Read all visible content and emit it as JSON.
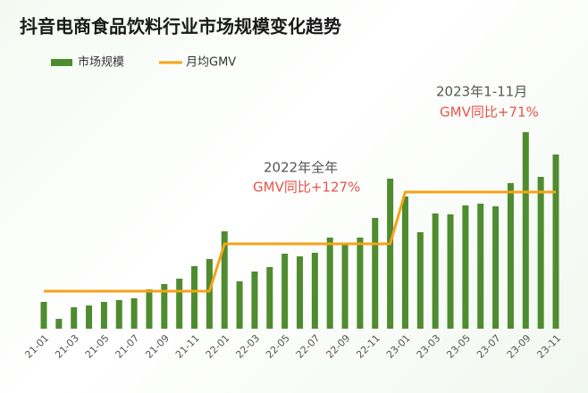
{
  "chart_data": {
    "type": "bar",
    "title": "抖音电商食品饮料行业市场规模变化趋势",
    "categories": [
      "21-01",
      null,
      "21-03",
      null,
      "21-05",
      null,
      "21-07",
      null,
      "21-09",
      null,
      "21-11",
      null,
      "22-01",
      null,
      "22-03",
      null,
      "22-05",
      null,
      "22-07",
      null,
      "22-09",
      null,
      "22-11",
      null,
      "23-01",
      null,
      "23-03",
      null,
      "23-05",
      null,
      "23-07",
      null,
      "23-09",
      null,
      "23-11"
    ],
    "series": [
      {
        "name": "市场规模",
        "type": "bar",
        "color": "#4f8b2f",
        "values": [
          30,
          11,
          24,
          26,
          30,
          32,
          34,
          44,
          50,
          56,
          70,
          78,
          109,
          53,
          64,
          69,
          84,
          81,
          85,
          102,
          96,
          102,
          124,
          168,
          148,
          108,
          129,
          128,
          138,
          140,
          137,
          163,
          220,
          170,
          195
        ]
      },
      {
        "name": "月均GMV",
        "type": "line",
        "color": "#f5a31a",
        "values": [
          42,
          42,
          42,
          42,
          42,
          42,
          42,
          42,
          42,
          42,
          42,
          42,
          95,
          95,
          95,
          95,
          95,
          95,
          95,
          95,
          95,
          95,
          95,
          95,
          153,
          153,
          153,
          153,
          153,
          153,
          153,
          153,
          153,
          153,
          153
        ]
      }
    ],
    "ylim": [
      0,
      230
    ],
    "annotations": [
      {
        "lines": [
          "2022年全年",
          "GMV同比+127%"
        ]
      },
      {
        "lines": [
          "2023年1-11月",
          "GMV同比+71%"
        ]
      }
    ]
  }
}
